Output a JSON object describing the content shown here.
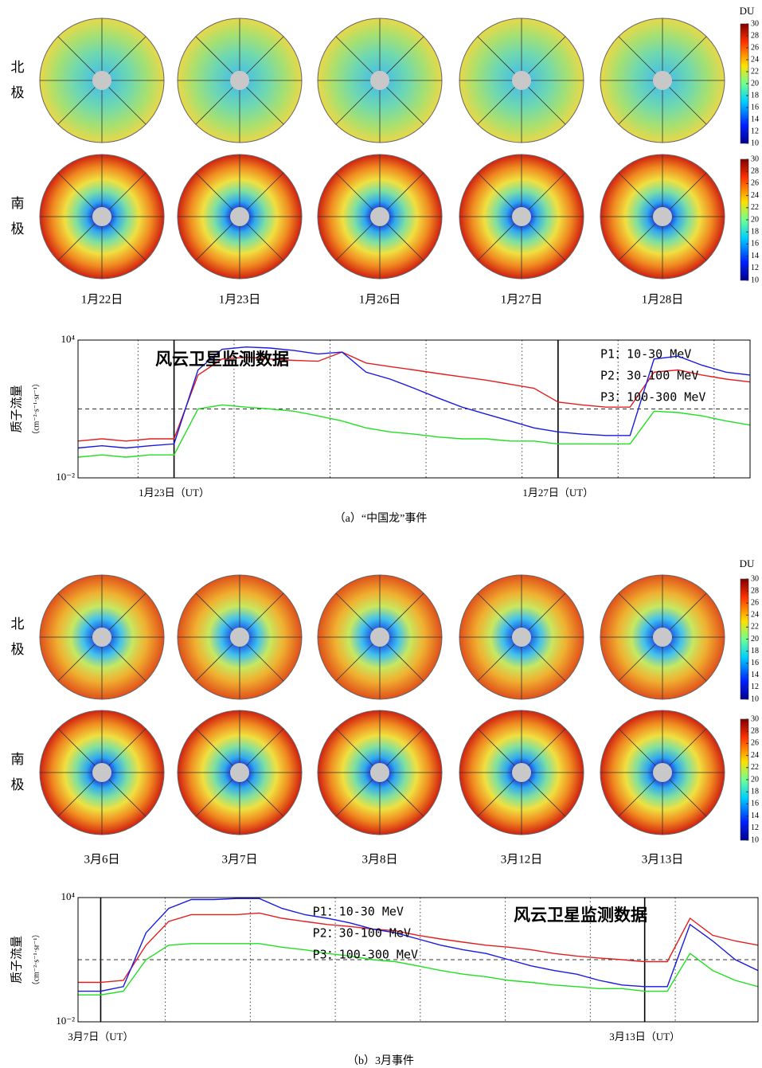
{
  "figure": {
    "panels": [
      {
        "north_label": [
          "北",
          "极"
        ],
        "south_label": [
          "南",
          "极"
        ],
        "dates": [
          "1月22日",
          "1月23日",
          "1月26日",
          "1月27日",
          "1月28日"
        ],
        "colorbar": {
          "title": "DU",
          "range": [
            10,
            30
          ],
          "ticks": [
            10,
            12,
            14,
            16,
            18,
            20,
            22,
            24,
            26,
            28,
            30
          ]
        },
        "caption": "（a）“中国龙”事件"
      },
      {
        "north_label": [
          "北",
          "极"
        ],
        "south_label": [
          "南",
          "极"
        ],
        "dates": [
          "3月6日",
          "3月7日",
          "3月8日",
          "3月12日",
          "3月13日"
        ],
        "colorbar": {
          "title": "DU",
          "range": [
            10,
            30
          ],
          "ticks": [
            10,
            12,
            14,
            16,
            18,
            20,
            22,
            24,
            26,
            28,
            30
          ]
        },
        "caption": "（b）3月事件"
      }
    ]
  },
  "chart_data": [
    {
      "type": "line",
      "y_label": "质子流量",
      "y_unit": "（cm⁻²·s⁻¹·sr⁻¹）",
      "annotation": "风云卫星监测数据",
      "categories": [
        null,
        null,
        null,
        null,
        "1月23日（UT）",
        null,
        null,
        null,
        null,
        null,
        null,
        null,
        null,
        null,
        null,
        null,
        null,
        null,
        null,
        null,
        "1月27日（UT）",
        null,
        null,
        null,
        null,
        null,
        null,
        null,
        null
      ],
      "series": [
        {
          "name": "P1：10-30 MeV",
          "color": "#e02020",
          "values": [
            0.4,
            0.5,
            0.4,
            0.5,
            0.5,
            300,
            1500,
            1800,
            1500,
            1300,
            1200,
            3000,
            1000,
            700,
            500,
            350,
            250,
            180,
            120,
            80,
            20,
            15,
            12,
            12,
            400,
            500,
            300,
            200,
            150
          ]
        },
        {
          "name": "P2：30-100 MeV",
          "color": "#1a1ae0",
          "values": [
            0.2,
            0.25,
            0.2,
            0.25,
            0.3,
            500,
            4000,
            5000,
            4500,
            3500,
            2500,
            3000,
            400,
            200,
            80,
            30,
            12,
            6,
            3,
            1.5,
            1,
            0.8,
            0.7,
            0.7,
            1500,
            2000,
            800,
            400,
            300
          ]
        },
        {
          "name": "P3：100-300 MeV",
          "color": "#20e020",
          "values": [
            0.08,
            0.1,
            0.08,
            0.1,
            0.1,
            10,
            15,
            12,
            10,
            8,
            5,
            3,
            1.5,
            1,
            0.8,
            0.6,
            0.5,
            0.5,
            0.4,
            0.4,
            0.3,
            0.3,
            0.3,
            0.3,
            8,
            7,
            5,
            3,
            2
          ]
        }
      ],
      "ylim": [
        0.01,
        10000
      ],
      "yticks": [
        {
          "value": 0.01,
          "label": "10⁻²"
        },
        {
          "value": 10000,
          "label": "10⁴"
        }
      ],
      "log_scale": true,
      "hline": 10,
      "legend": "upper right"
    },
    {
      "type": "line",
      "y_label": "质子流量",
      "y_unit": "（cm⁻²·s⁻¹·sr⁻¹）",
      "annotation": "风云卫星监测数据",
      "categories": [
        null,
        "3月7日（UT）",
        null,
        null,
        null,
        null,
        null,
        null,
        null,
        null,
        null,
        null,
        null,
        null,
        null,
        null,
        null,
        null,
        null,
        null,
        null,
        null,
        null,
        null,
        null,
        "3月13日（UT）",
        null,
        null,
        null,
        null,
        null
      ],
      "series": [
        {
          "name": "P1：10-30 MeV",
          "color": "#e02020",
          "values": [
            0.8,
            0.8,
            1,
            50,
            700,
            1500,
            1500,
            1500,
            1800,
            1000,
            700,
            500,
            400,
            300,
            250,
            150,
            100,
            70,
            50,
            40,
            30,
            20,
            15,
            12,
            10,
            8,
            8,
            1000,
            150,
            80,
            50
          ]
        },
        {
          "name": "P2：30-100 MeV",
          "color": "#1a1ae0",
          "values": [
            0.3,
            0.3,
            0.5,
            200,
            3000,
            8000,
            8000,
            9000,
            9000,
            3000,
            1500,
            1000,
            600,
            300,
            200,
            100,
            50,
            30,
            20,
            10,
            5,
            3,
            2,
            1,
            0.6,
            0.5,
            0.5,
            500,
            80,
            10,
            3
          ]
        },
        {
          "name": "P3：100-300 MeV",
          "color": "#20e020",
          "values": [
            0.2,
            0.2,
            0.3,
            10,
            50,
            60,
            60,
            60,
            60,
            40,
            30,
            20,
            15,
            10,
            8,
            5,
            3,
            2,
            1.5,
            1,
            0.8,
            0.6,
            0.5,
            0.4,
            0.4,
            0.3,
            0.3,
            20,
            3,
            1,
            0.5
          ]
        }
      ],
      "ylim": [
        0.01,
        10000
      ],
      "yticks": [
        {
          "value": 0.01,
          "label": "10⁻²"
        },
        {
          "value": 10000,
          "label": "10⁴"
        }
      ],
      "log_scale": true,
      "hline": 10,
      "legend": "upper center"
    }
  ]
}
